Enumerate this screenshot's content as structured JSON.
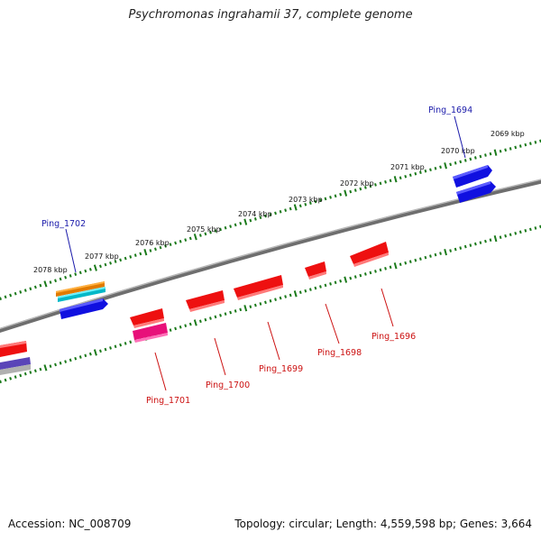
{
  "title": "Psychromonas ingrahamii 37, complete genome",
  "footer": {
    "accession": "Accession: NC_008709",
    "summary": "Topology: circular; Length: 4,559,598 bp; Genes: 3,664"
  },
  "colors": {
    "backbone": "#888888",
    "tick": "#1a7a1a",
    "forward_label": "#1a1aaa",
    "reverse_label": "#cc1111"
  },
  "scale_labels": [
    "2069 kbp",
    "2070 kbp",
    "2071 kbp",
    "2072 kbp",
    "2073 kbp",
    "2074 kbp",
    "2075 kbp",
    "2076 kbp",
    "2077 kbp",
    "2078 kbp"
  ],
  "gene_labels": {
    "forward": [
      "Ping_1694",
      "Ping_1702"
    ],
    "reverse": [
      "Ping_1696",
      "Ping_1698",
      "Ping_1699",
      "Ping_1700",
      "Ping_1701"
    ]
  }
}
